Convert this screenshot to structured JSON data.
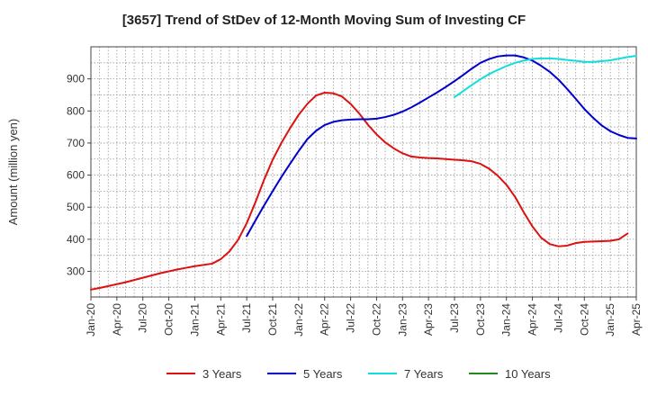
{
  "chart_data": {
    "type": "line",
    "title": "[3657]  Trend of StDev of 12-Month Moving Sum of Investing CF",
    "xlabel": "",
    "ylabel": "Amount (million yen)",
    "ylim": [
      220,
      1000
    ],
    "yticks": [
      300,
      400,
      500,
      600,
      700,
      800,
      900
    ],
    "grid": true,
    "legend_position": "bottom",
    "x_tick_labels": [
      "Jan-20",
      "Apr-20",
      "Jul-20",
      "Oct-20",
      "Jan-21",
      "Apr-21",
      "Jul-21",
      "Oct-21",
      "Jan-22",
      "Apr-22",
      "Jul-22",
      "Oct-22",
      "Jan-23",
      "Apr-23",
      "Jul-23",
      "Oct-23",
      "Jan-24",
      "Apr-24",
      "Jul-24",
      "Oct-24",
      "Jan-25",
      "Apr-25"
    ],
    "x_tick_dates": [
      "2020-01",
      "2020-04",
      "2020-07",
      "2020-10",
      "2021-01",
      "2021-04",
      "2021-07",
      "2021-10",
      "2022-01",
      "2022-04",
      "2022-07",
      "2022-10",
      "2023-01",
      "2023-04",
      "2023-07",
      "2023-10",
      "2024-01",
      "2024-04",
      "2024-07",
      "2024-10",
      "2025-01",
      "2025-04"
    ],
    "series": [
      {
        "name": "3 Years",
        "color": "#dd1111",
        "points": [
          [
            "2020-01",
            243
          ],
          [
            "2020-02",
            248
          ],
          [
            "2020-03",
            254
          ],
          [
            "2020-04",
            260
          ],
          [
            "2020-05",
            266
          ],
          [
            "2020-06",
            273
          ],
          [
            "2020-07",
            280
          ],
          [
            "2020-08",
            287
          ],
          [
            "2020-09",
            294
          ],
          [
            "2020-10",
            300
          ],
          [
            "2020-11",
            306
          ],
          [
            "2020-12",
            311
          ],
          [
            "2021-01",
            316
          ],
          [
            "2021-02",
            320
          ],
          [
            "2021-03",
            324
          ],
          [
            "2021-04",
            338
          ],
          [
            "2021-05",
            362
          ],
          [
            "2021-06",
            398
          ],
          [
            "2021-07",
            450
          ],
          [
            "2021-08",
            515
          ],
          [
            "2021-09",
            585
          ],
          [
            "2021-10",
            648
          ],
          [
            "2021-11",
            700
          ],
          [
            "2021-12",
            746
          ],
          [
            "2022-01",
            788
          ],
          [
            "2022-02",
            822
          ],
          [
            "2022-03",
            848
          ],
          [
            "2022-04",
            857
          ],
          [
            "2022-05",
            855
          ],
          [
            "2022-06",
            845
          ],
          [
            "2022-07",
            822
          ],
          [
            "2022-08",
            792
          ],
          [
            "2022-09",
            757
          ],
          [
            "2022-10",
            727
          ],
          [
            "2022-11",
            702
          ],
          [
            "2022-12",
            683
          ],
          [
            "2023-01",
            668
          ],
          [
            "2023-02",
            658
          ],
          [
            "2023-03",
            655
          ],
          [
            "2023-04",
            653
          ],
          [
            "2023-05",
            652
          ],
          [
            "2023-06",
            650
          ],
          [
            "2023-07",
            648
          ],
          [
            "2023-08",
            646
          ],
          [
            "2023-09",
            643
          ],
          [
            "2023-10",
            635
          ],
          [
            "2023-11",
            620
          ],
          [
            "2023-12",
            598
          ],
          [
            "2024-01",
            570
          ],
          [
            "2024-02",
            532
          ],
          [
            "2024-03",
            484
          ],
          [
            "2024-04",
            440
          ],
          [
            "2024-05",
            405
          ],
          [
            "2024-06",
            385
          ],
          [
            "2024-07",
            378
          ],
          [
            "2024-08",
            380
          ],
          [
            "2024-09",
            388
          ],
          [
            "2024-10",
            392
          ],
          [
            "2024-11",
            393
          ],
          [
            "2024-12",
            394
          ],
          [
            "2025-01",
            395
          ],
          [
            "2025-02",
            400
          ],
          [
            "2025-03",
            418
          ]
        ]
      },
      {
        "name": "5 Years",
        "color": "#0000cc",
        "points": [
          [
            "2021-07",
            410
          ],
          [
            "2021-08",
            458
          ],
          [
            "2021-09",
            505
          ],
          [
            "2021-10",
            550
          ],
          [
            "2021-11",
            594
          ],
          [
            "2021-12",
            635
          ],
          [
            "2022-01",
            675
          ],
          [
            "2022-02",
            712
          ],
          [
            "2022-03",
            738
          ],
          [
            "2022-04",
            756
          ],
          [
            "2022-05",
            766
          ],
          [
            "2022-06",
            771
          ],
          [
            "2022-07",
            773
          ],
          [
            "2022-08",
            774
          ],
          [
            "2022-09",
            774
          ],
          [
            "2022-10",
            776
          ],
          [
            "2022-11",
            781
          ],
          [
            "2022-12",
            788
          ],
          [
            "2023-01",
            798
          ],
          [
            "2023-02",
            811
          ],
          [
            "2023-03",
            826
          ],
          [
            "2023-04",
            842
          ],
          [
            "2023-05",
            858
          ],
          [
            "2023-06",
            875
          ],
          [
            "2023-07",
            893
          ],
          [
            "2023-08",
            912
          ],
          [
            "2023-09",
            932
          ],
          [
            "2023-10",
            950
          ],
          [
            "2023-11",
            962
          ],
          [
            "2023-12",
            970
          ],
          [
            "2024-01",
            973
          ],
          [
            "2024-02",
            973
          ],
          [
            "2024-03",
            967
          ],
          [
            "2024-04",
            957
          ],
          [
            "2024-05",
            941
          ],
          [
            "2024-06",
            922
          ],
          [
            "2024-07",
            898
          ],
          [
            "2024-08",
            869
          ],
          [
            "2024-09",
            838
          ],
          [
            "2024-10",
            806
          ],
          [
            "2024-11",
            779
          ],
          [
            "2024-12",
            755
          ],
          [
            "2025-01",
            737
          ],
          [
            "2025-02",
            725
          ],
          [
            "2025-03",
            716
          ],
          [
            "2025-04",
            714
          ]
        ]
      },
      {
        "name": "7 Years",
        "color": "#11dddd",
        "points": [
          [
            "2023-07",
            843
          ],
          [
            "2023-08",
            862
          ],
          [
            "2023-09",
            881
          ],
          [
            "2023-10",
            899
          ],
          [
            "2023-11",
            915
          ],
          [
            "2023-12",
            928
          ],
          [
            "2024-01",
            940
          ],
          [
            "2024-02",
            950
          ],
          [
            "2024-03",
            957
          ],
          [
            "2024-04",
            962
          ],
          [
            "2024-05",
            964
          ],
          [
            "2024-06",
            964
          ],
          [
            "2024-07",
            962
          ],
          [
            "2024-08",
            959
          ],
          [
            "2024-09",
            956
          ],
          [
            "2024-10",
            953
          ],
          [
            "2024-11",
            953
          ],
          [
            "2024-12",
            955
          ],
          [
            "2025-01",
            958
          ],
          [
            "2025-02",
            963
          ],
          [
            "2025-03",
            968
          ],
          [
            "2025-04",
            972
          ]
        ]
      },
      {
        "name": "10 Years",
        "color": "#228822",
        "points": []
      }
    ]
  }
}
